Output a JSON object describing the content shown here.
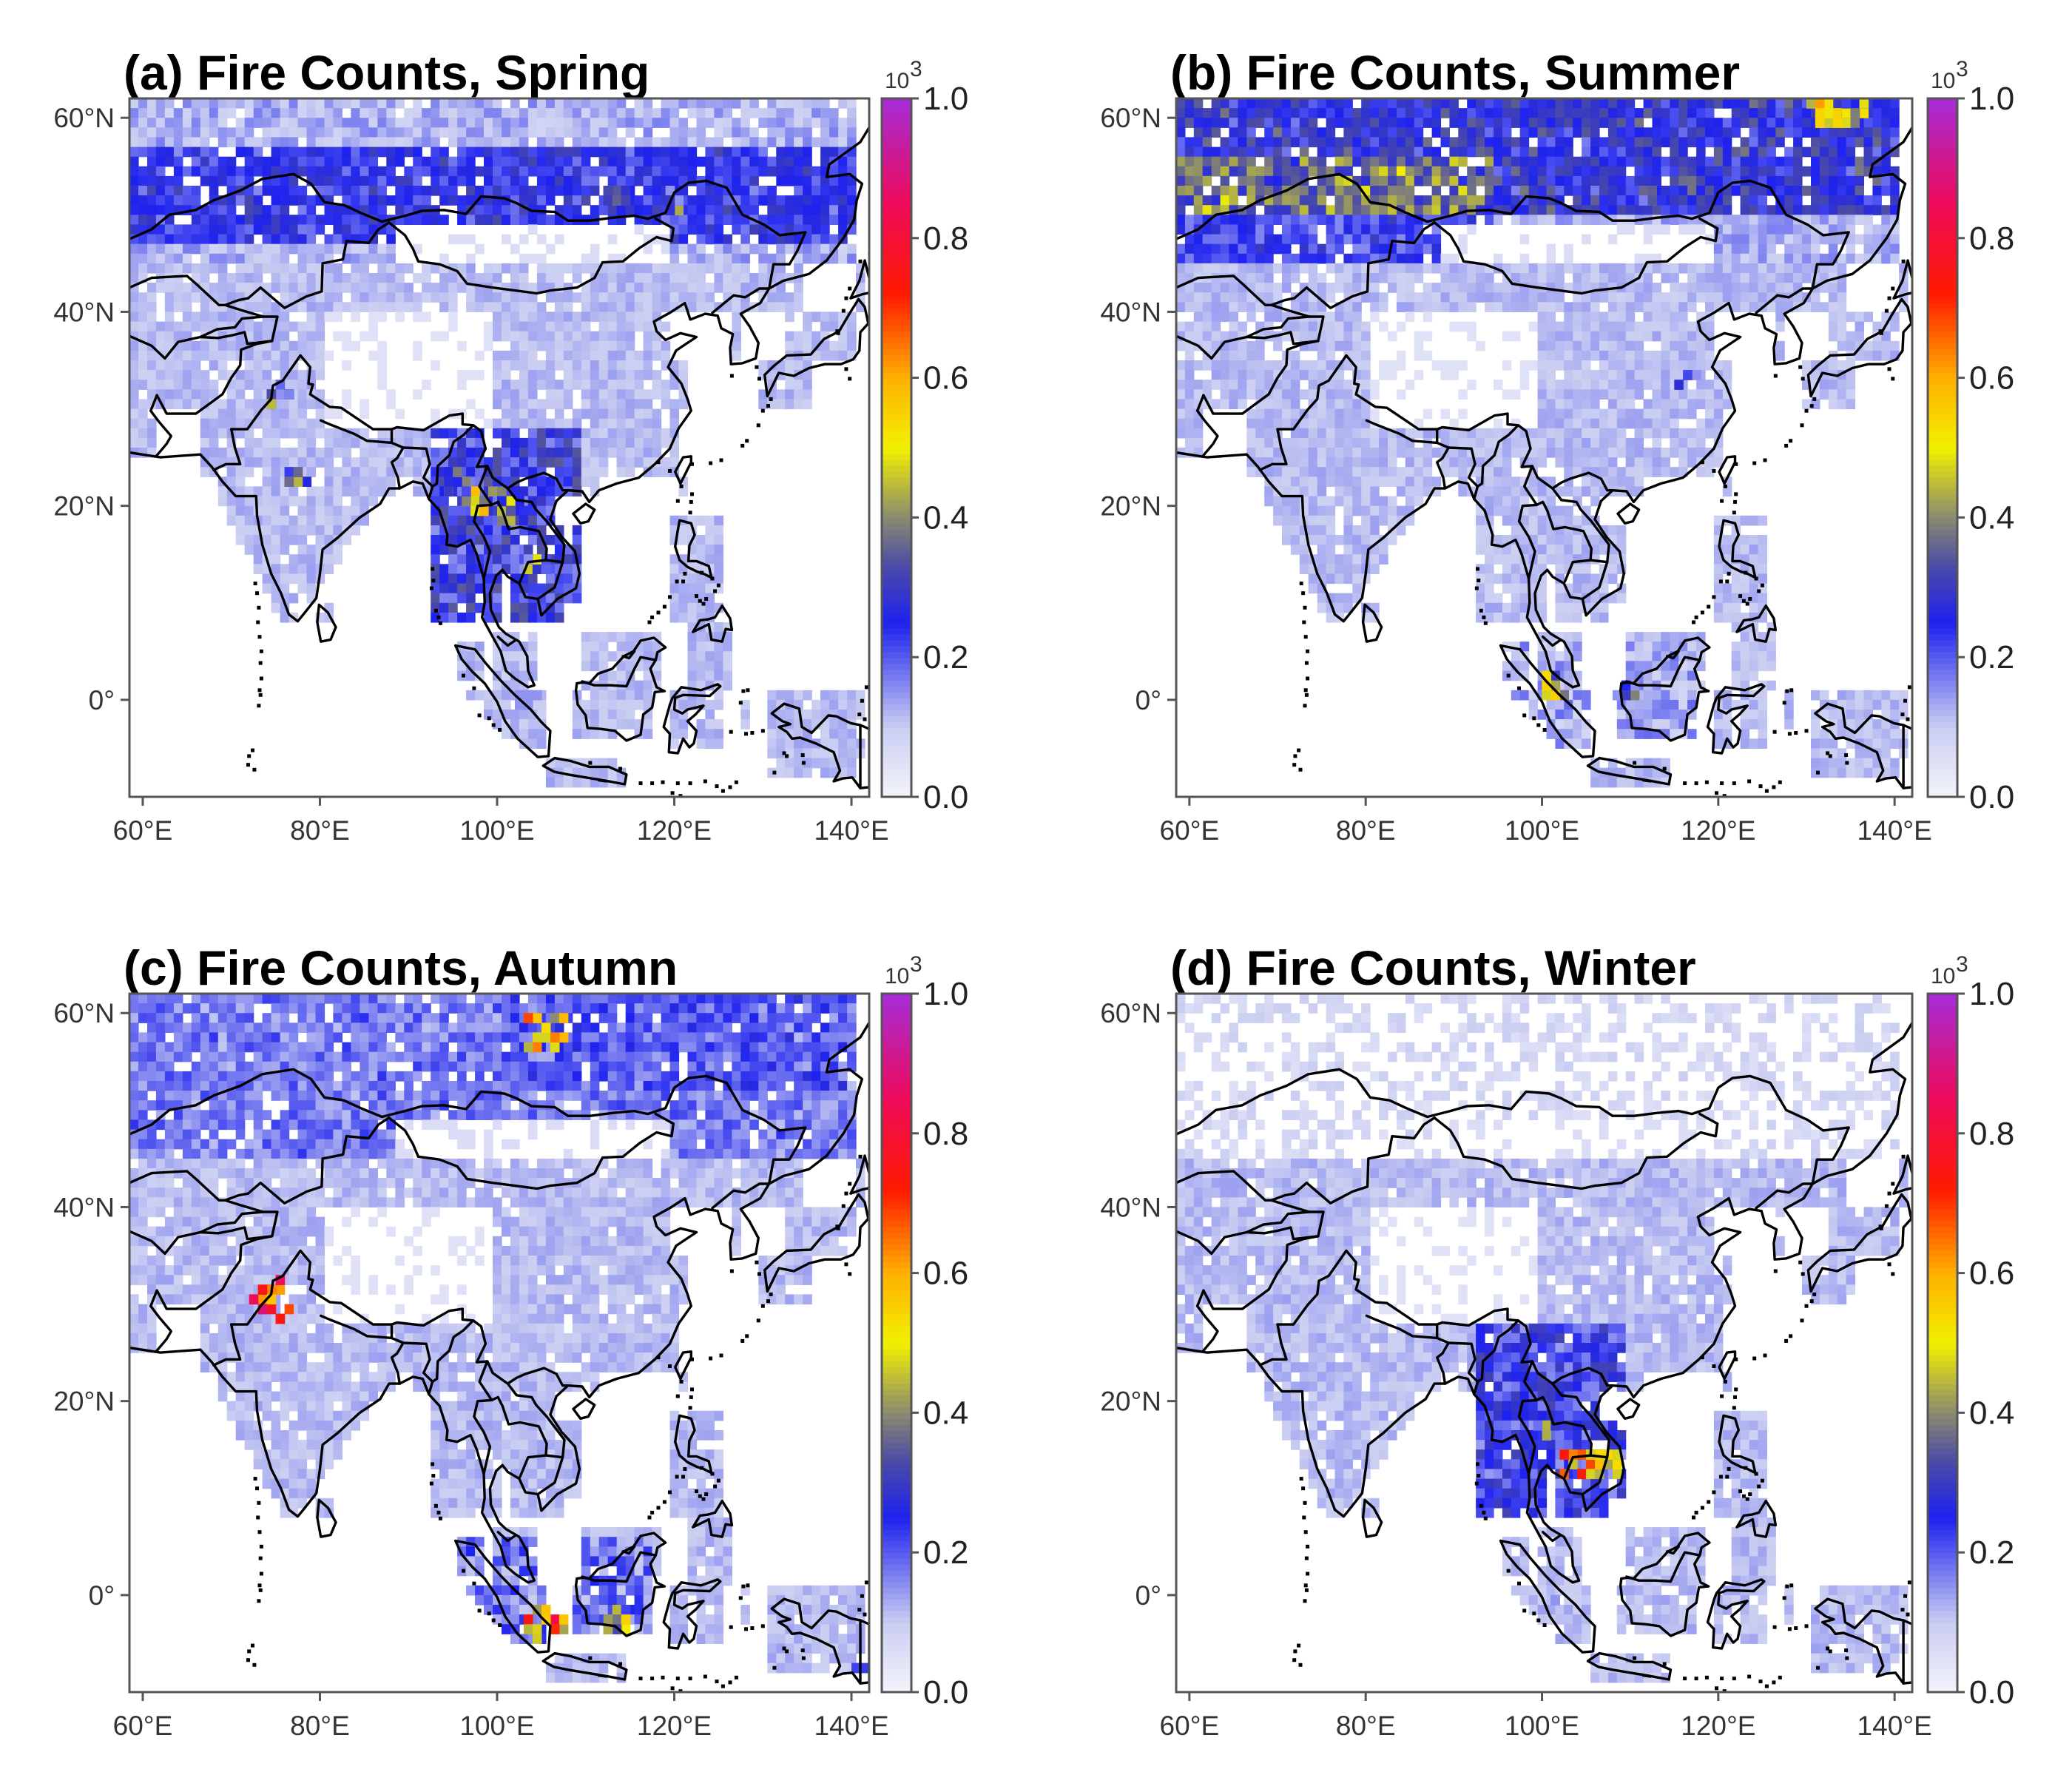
{
  "figure": {
    "colorbar": {
      "multiplier_label": "10",
      "multiplier_exponent": "3",
      "ticks": [
        "1.0",
        "0.8",
        "0.6",
        "0.4",
        "0.2",
        "0.0"
      ],
      "tick_values": [
        1.0,
        0.8,
        0.6,
        0.4,
        0.2,
        0.0
      ],
      "range": [
        0.0,
        1.0
      ],
      "stops": [
        {
          "value": 0.0,
          "color": "#f4f4fb"
        },
        {
          "value": 0.1,
          "color": "#c9cdf1"
        },
        {
          "value": 0.25,
          "color": "#1e22ee"
        },
        {
          "value": 0.33,
          "color": "#4a4aa8"
        },
        {
          "value": 0.4,
          "color": "#8a8a70"
        },
        {
          "value": 0.5,
          "color": "#f2f000"
        },
        {
          "value": 0.6,
          "color": "#ffb000"
        },
        {
          "value": 0.72,
          "color": "#ff1a00"
        },
        {
          "value": 0.85,
          "color": "#ee0a5a"
        },
        {
          "value": 1.0,
          "color": "#a62cd8"
        }
      ]
    },
    "axes": {
      "lon_ticks": [
        "60°E",
        "80°E",
        "100°E",
        "120°E",
        "140°E"
      ],
      "lon_values": [
        60,
        80,
        100,
        120,
        140
      ],
      "lat_ticks": [
        "60°N",
        "40°N",
        "20°N",
        "0°"
      ],
      "lat_values": [
        60,
        40,
        20,
        0
      ],
      "lon_range": [
        58.5,
        142
      ],
      "lat_range": [
        -10,
        62
      ]
    },
    "panels": [
      {
        "id": "a",
        "title": "(a) Fire Counts, Spring",
        "hotspots": [
          {
            "lon": 98,
            "lat": 20,
            "value": 0.7
          },
          {
            "lon": 95,
            "lat": 22,
            "value": 0.55
          },
          {
            "lon": 101,
            "lat": 19,
            "value": 0.6
          },
          {
            "lon": 104,
            "lat": 14,
            "value": 0.5
          },
          {
            "lon": 113,
            "lat": 51.5,
            "value": 0.5
          },
          {
            "lon": 120,
            "lat": 51,
            "value": 0.45
          },
          {
            "lon": 75,
            "lat": 31,
            "value": 0.45
          },
          {
            "lon": 77,
            "lat": 22.5,
            "value": 0.45
          },
          {
            "lon": 103,
            "lat": -0.5,
            "value": 0.25
          }
        ],
        "season": "spring"
      },
      {
        "id": "b",
        "title": "(b) Fire Counts, Summer",
        "hotspots": [
          {
            "lon": 132,
            "lat": 60,
            "value": 0.75
          },
          {
            "lon": 135,
            "lat": 60.5,
            "value": 0.55
          },
          {
            "lon": 112,
            "lat": 51,
            "value": 0.4
          },
          {
            "lon": 100.5,
            "lat": 1,
            "value": 0.6
          },
          {
            "lon": 109,
            "lat": 0.5,
            "value": 0.45
          },
          {
            "lon": 116,
            "lat": 33,
            "value": 0.3
          }
        ],
        "season": "summer"
      },
      {
        "id": "c",
        "title": "(c) Fire Counts, Autumn",
        "hotspots": [
          {
            "lon": 105,
            "lat": 57.5,
            "value": 0.75
          },
          {
            "lon": 74.5,
            "lat": 30,
            "value": 0.9
          },
          {
            "lon": 105,
            "lat": -3.5,
            "value": 0.75
          },
          {
            "lon": 113,
            "lat": -3,
            "value": 0.55
          },
          {
            "lon": 140,
            "lat": -8,
            "value": 0.25
          }
        ],
        "season": "autumn"
      },
      {
        "id": "d",
        "title": "(d) Fire Counts, Winter",
        "hotspots": [
          {
            "lon": 104,
            "lat": 13,
            "value": 0.75
          },
          {
            "lon": 106.5,
            "lat": 13.5,
            "value": 0.6
          },
          {
            "lon": 100,
            "lat": 16.5,
            "value": 0.45
          },
          {
            "lon": 101,
            "lat": -1,
            "value": 0.2
          }
        ],
        "season": "winter"
      }
    ]
  }
}
